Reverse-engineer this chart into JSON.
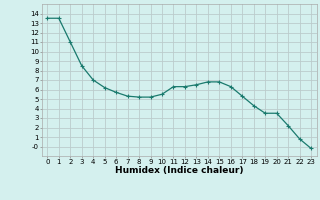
{
  "xlabel": "Humidex (Indice chaleur)",
  "ylabel": "",
  "x": [
    0,
    1,
    2,
    3,
    4,
    5,
    6,
    7,
    8,
    9,
    10,
    11,
    12,
    13,
    14,
    15,
    16,
    17,
    18,
    19,
    20,
    21,
    22,
    23
  ],
  "y": [
    13.5,
    13.5,
    11.0,
    8.5,
    7.0,
    6.2,
    5.7,
    5.3,
    5.2,
    5.2,
    5.5,
    6.3,
    6.3,
    6.5,
    6.8,
    6.8,
    6.3,
    5.3,
    4.3,
    3.5,
    3.5,
    2.2,
    0.8,
    -0.2
  ],
  "xlim": [
    -0.5,
    23.5
  ],
  "ylim": [
    -1,
    15
  ],
  "yticks": [
    0,
    1,
    2,
    3,
    4,
    5,
    6,
    7,
    8,
    9,
    10,
    11,
    12,
    13,
    14
  ],
  "xticks": [
    0,
    1,
    2,
    3,
    4,
    5,
    6,
    7,
    8,
    9,
    10,
    11,
    12,
    13,
    14,
    15,
    16,
    17,
    18,
    19,
    20,
    21,
    22,
    23
  ],
  "line_color": "#1a7a6e",
  "marker_color": "#1a7a6e",
  "bg_color": "#d4f0ee",
  "grid_color": "#bbcccc",
  "tick_label_fontsize": 5.0,
  "xlabel_fontsize": 6.5,
  "marker": "+",
  "markersize": 3.5,
  "linewidth": 0.9
}
